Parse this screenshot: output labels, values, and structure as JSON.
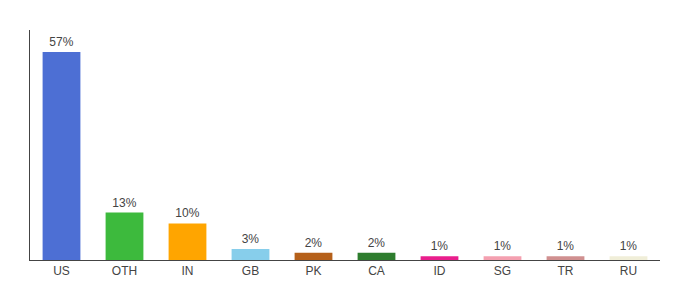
{
  "chart_data": {
    "type": "bar",
    "categories": [
      "US",
      "OTH",
      "IN",
      "GB",
      "PK",
      "CA",
      "ID",
      "SG",
      "TR",
      "RU"
    ],
    "values": [
      57,
      13,
      10,
      3,
      2,
      2,
      1,
      1,
      1,
      1
    ],
    "value_labels": [
      "57%",
      "13%",
      "10%",
      "3%",
      "2%",
      "2%",
      "1%",
      "1%",
      "1%",
      "1%"
    ],
    "colors": [
      "#4d6fd4",
      "#3dba3d",
      "#ffa500",
      "#87ceeb",
      "#b5601a",
      "#2e7d2e",
      "#e91e8c",
      "#f4a0b0",
      "#d09090",
      "#f0eed8"
    ],
    "ylim": [
      0,
      63
    ],
    "grid": false,
    "data_labels": true,
    "tick_labels": "x"
  }
}
